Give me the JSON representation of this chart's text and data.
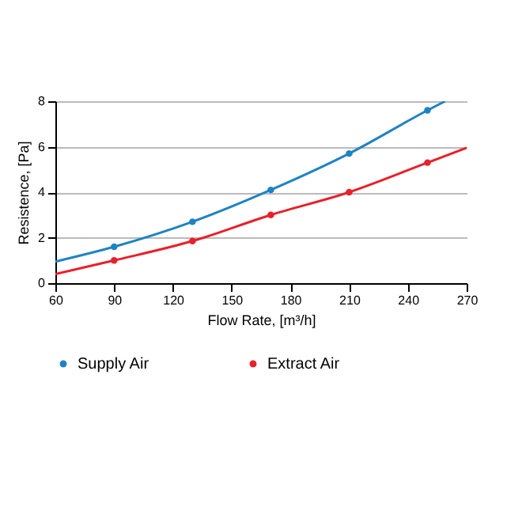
{
  "chart_data": {
    "type": "line",
    "xlabel": "Flow Rate, [m³/h]",
    "ylabel": "Resistence, [Pa]",
    "xlim": [
      60,
      270
    ],
    "xticks": [
      60,
      90,
      120,
      150,
      180,
      210,
      240,
      270
    ],
    "ylim": [
      0,
      8
    ],
    "yticks": [
      0,
      2,
      4,
      6,
      8
    ],
    "grid": "y",
    "legend": "bottom",
    "series": [
      {
        "color": "#1f83c3",
        "x": [
          60,
          90,
          130,
          170,
          210,
          250,
          259
        ],
        "values": [
          0.95,
          1.6,
          2.7,
          4.1,
          5.7,
          7.6,
          8.0
        ]
      },
      {
        "color": "#e8202a",
        "x": [
          60,
          90,
          130,
          170,
          210,
          250,
          270
        ],
        "values": [
          0.4,
          1.0,
          1.85,
          3.0,
          4.0,
          5.3,
          5.95
        ]
      },
      {
        "type": "scatter",
        "name": "Supply Air",
        "color": "#1f83c3",
        "marker": "circle",
        "x": [
          90,
          130,
          170,
          210,
          250
        ],
        "values": [
          1.6,
          2.7,
          4.1,
          5.7,
          7.6
        ]
      },
      {
        "type": "scatter",
        "name": "Extract Air",
        "color": "#e8202a",
        "marker": "circle",
        "x": [
          90,
          130,
          170,
          210,
          250
        ],
        "values": [
          1.0,
          1.85,
          3.0,
          4.0,
          5.3
        ]
      }
    ]
  }
}
